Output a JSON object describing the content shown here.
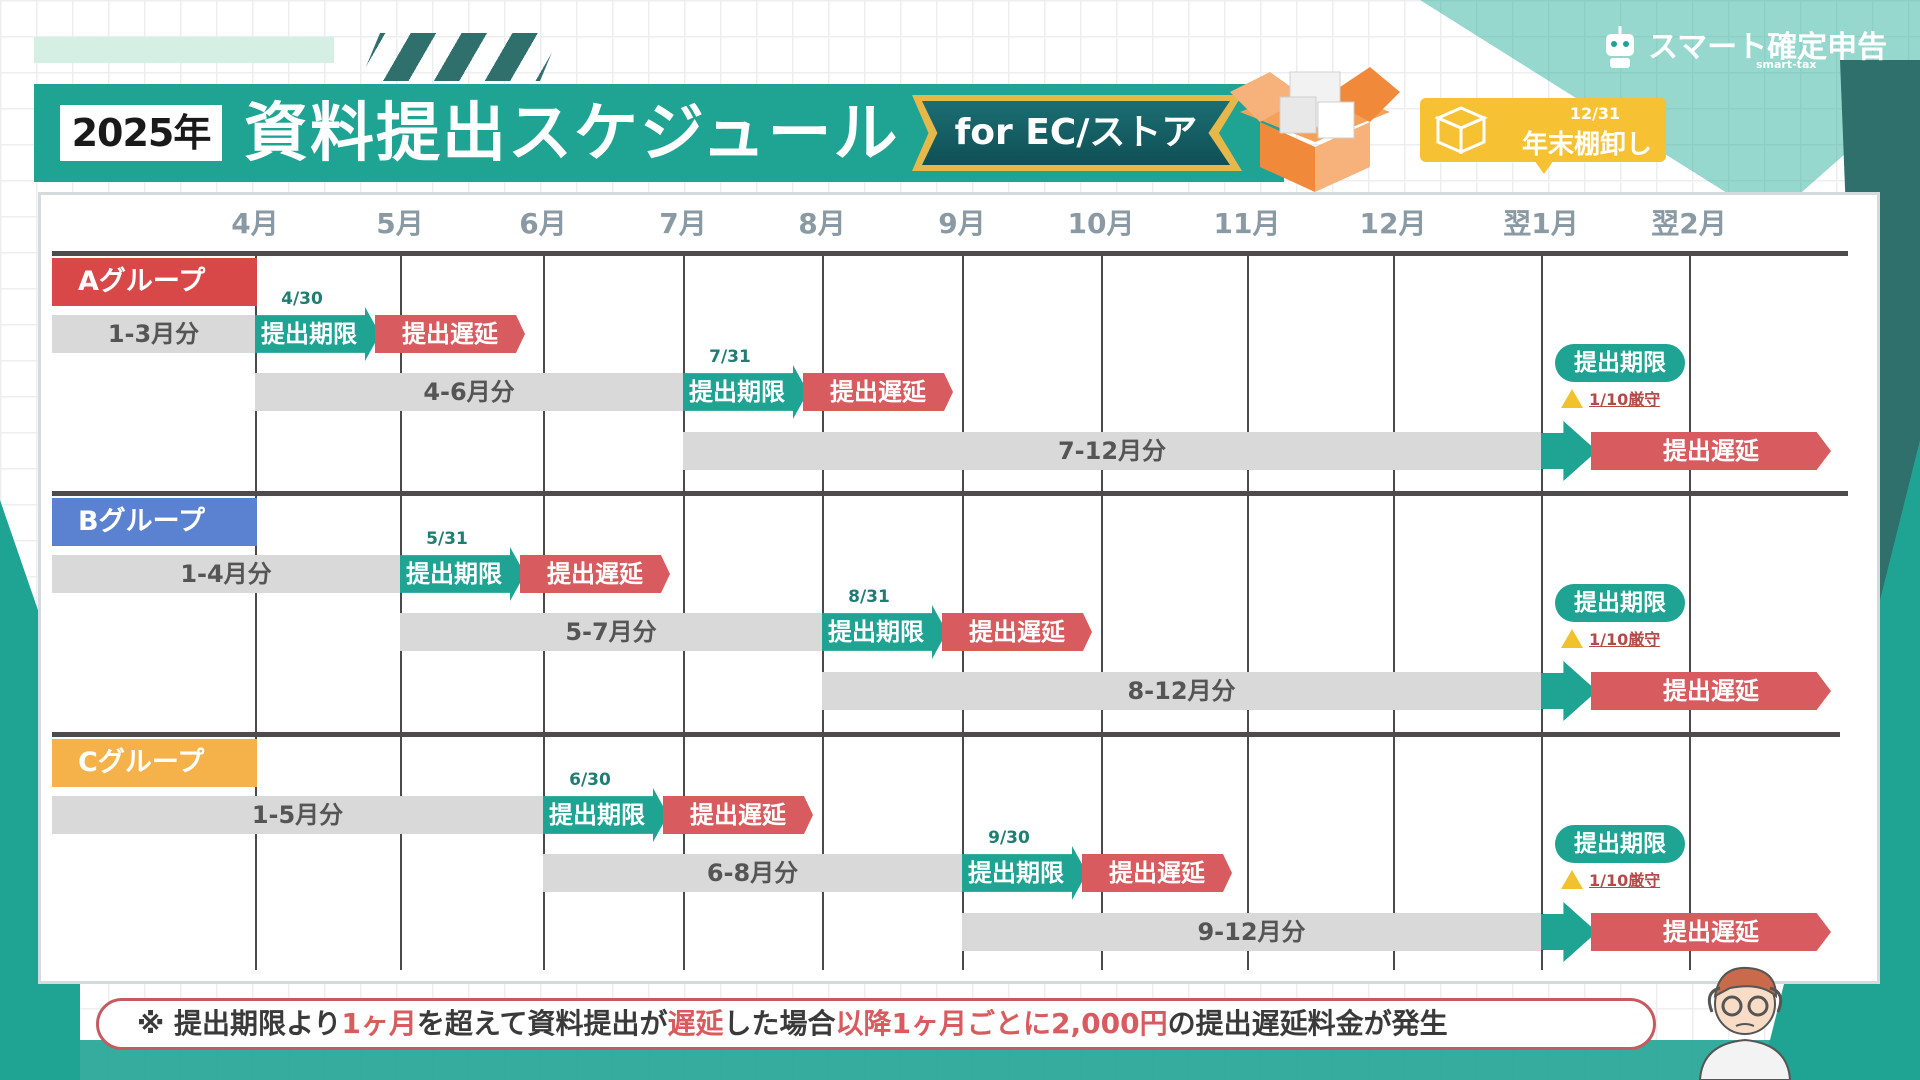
{
  "header": {
    "year": "2025年",
    "title": "資料提出スケジュール",
    "badge": "for EC/ストア",
    "brand": "スマート確定申告",
    "brand_sub": "smart-tax",
    "inventory_date": "12/31",
    "inventory_label": "年末棚卸し"
  },
  "months": [
    "4月",
    "5月",
    "6月",
    "7月",
    "8月",
    "9月",
    "10月",
    "11月",
    "12月",
    "翌1月",
    "翌2月"
  ],
  "labels": {
    "deadline": "提出期限",
    "late": "提出遅延",
    "final_deadline": "提出期限",
    "final_warning": "1/10厳守",
    "final_late": "提出遅延"
  },
  "groups": [
    {
      "name": "Aグループ",
      "color": "#d84848",
      "periods": [
        {
          "label": "1-3月分",
          "deadline": "4/30"
        },
        {
          "label": "4-6月分",
          "deadline": "7/31"
        },
        {
          "label": "7-12月分",
          "deadline": "1/10"
        }
      ]
    },
    {
      "name": "Bグループ",
      "color": "#5b82d0",
      "periods": [
        {
          "label": "1-4月分",
          "deadline": "5/31"
        },
        {
          "label": "5-7月分",
          "deadline": "8/31"
        },
        {
          "label": "8-12月分",
          "deadline": "1/10"
        }
      ]
    },
    {
      "name": "Cグループ",
      "color": "#f5b24a",
      "periods": [
        {
          "label": "1-5月分",
          "deadline": "6/30"
        },
        {
          "label": "6-8月分",
          "deadline": "9/30"
        },
        {
          "label": "9-12月分",
          "deadline": "1/10"
        }
      ]
    }
  ],
  "note": {
    "mark": "※ ",
    "p1": "提出期限より",
    "p2": "1ヶ月",
    "p3": "を超えて資料提出が",
    "p4": "遅延",
    "p5": "した場合",
    "p6": "以降1ヶ月ごとに2,000円",
    "p7": "の提出遅延料金が発生"
  },
  "colors": {
    "teal": "#1fa393",
    "late_red": "#d85c5f",
    "period_gray": "#d9d9da"
  }
}
